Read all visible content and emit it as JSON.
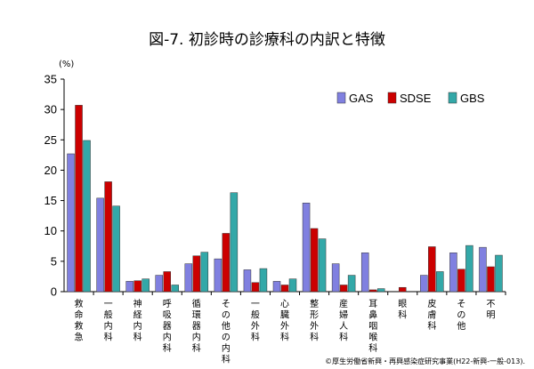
{
  "chart_data": {
    "type": "bar",
    "title": "図-7. 初診時の診療科の内訳と特徴",
    "ylabel": "(%)",
    "xlabel": "",
    "ylim": [
      0,
      35
    ],
    "yticks": [
      0,
      5,
      10,
      15,
      20,
      25,
      30,
      35
    ],
    "legend_position": "top-right",
    "categories": [
      "救命救急",
      "一般内科",
      "神経内科",
      "呼吸器内科",
      "循環器内科",
      "その他の内科",
      "一般外科",
      "心臓外科",
      "整形外科",
      "産婦人科",
      "耳鼻咽喉科",
      "眼科",
      "皮膚科",
      "その他",
      "不明"
    ],
    "series": [
      {
        "name": "GAS",
        "color": "#8080e0",
        "values": [
          22.7,
          15.4,
          1.7,
          2.7,
          4.6,
          5.4,
          3.6,
          1.7,
          14.6,
          4.6,
          6.4,
          0.0,
          2.7,
          6.4,
          7.3
        ]
      },
      {
        "name": "SDSE",
        "color": "#cc0000",
        "values": [
          30.7,
          18.1,
          1.8,
          3.3,
          5.9,
          9.6,
          1.5,
          1.1,
          10.4,
          1.1,
          0.3,
          0.7,
          7.4,
          3.7,
          4.1
        ]
      },
      {
        "name": "GBS",
        "color": "#33a8a8",
        "values": [
          24.9,
          14.1,
          2.1,
          1.1,
          6.5,
          16.3,
          3.8,
          2.1,
          8.7,
          2.7,
          0.5,
          0.0,
          3.3,
          7.6,
          6.0
        ]
      }
    ]
  },
  "footer": {
    "credit": "©厚生労働省新興・再興感染症研究事業(H22-新興-一般-013)."
  }
}
